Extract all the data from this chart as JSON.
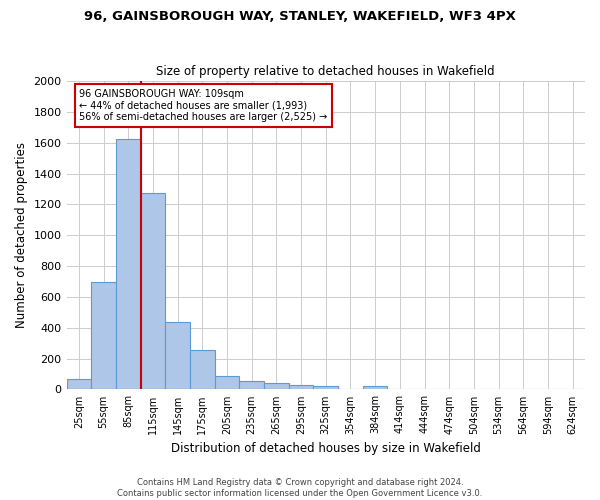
{
  "title": "96, GAINSBOROUGH WAY, STANLEY, WAKEFIELD, WF3 4PX",
  "subtitle": "Size of property relative to detached houses in Wakefield",
  "xlabel": "Distribution of detached houses by size in Wakefield",
  "ylabel": "Number of detached properties",
  "categories": [
    "25sqm",
    "55sqm",
    "85sqm",
    "115sqm",
    "145sqm",
    "175sqm",
    "205sqm",
    "235sqm",
    "265sqm",
    "295sqm",
    "325sqm",
    "354sqm",
    "384sqm",
    "414sqm",
    "444sqm",
    "474sqm",
    "504sqm",
    "534sqm",
    "564sqm",
    "594sqm",
    "624sqm"
  ],
  "values": [
    65,
    695,
    1625,
    1275,
    435,
    255,
    90,
    55,
    40,
    30,
    20,
    0,
    20,
    0,
    0,
    0,
    0,
    0,
    0,
    0,
    0
  ],
  "bar_color": "#aec6e8",
  "bar_edge_color": "#5b9bd5",
  "annotation_text": "96 GAINSBOROUGH WAY: 109sqm\n← 44% of detached houses are smaller (1,993)\n56% of semi-detached houses are larger (2,525) →",
  "annotation_box_color": "#ffffff",
  "annotation_box_edge_color": "#cc0000",
  "vline_color": "#cc0000",
  "vline_x": 2.5,
  "ylim": [
    0,
    2000
  ],
  "yticks": [
    0,
    200,
    400,
    600,
    800,
    1000,
    1200,
    1400,
    1600,
    1800,
    2000
  ],
  "background_color": "#ffffff",
  "grid_color": "#cccccc",
  "footer_line1": "Contains HM Land Registry data © Crown copyright and database right 2024.",
  "footer_line2": "Contains public sector information licensed under the Open Government Licence v3.0."
}
